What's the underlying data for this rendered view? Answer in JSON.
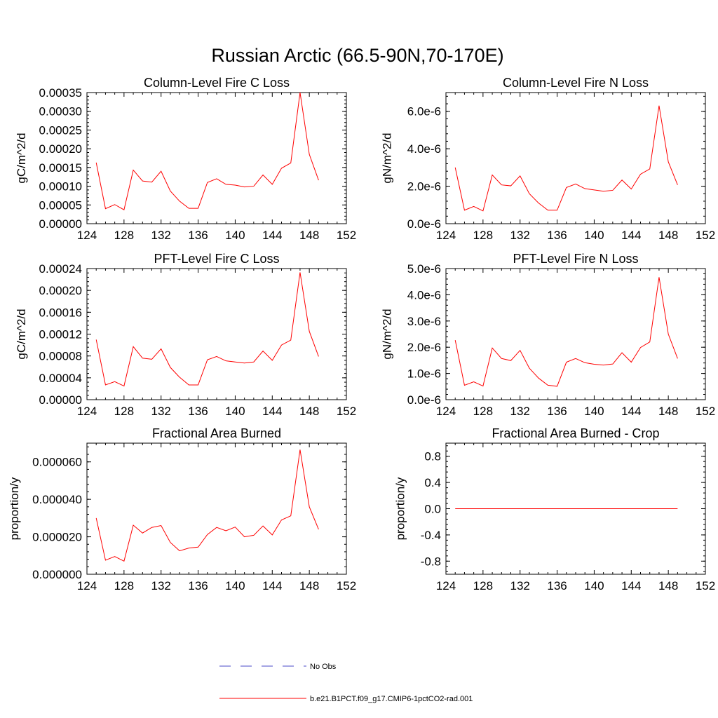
{
  "page_title": "Russian Arctic (66.5-90N,70-170E)",
  "legend": {
    "items": [
      {
        "label": "No Obs",
        "color": "#4a4ac8",
        "style": "dashed"
      },
      {
        "label": "b.e21.B1PCT.f09_g17.CMIP6-1pctCO2-rad.001",
        "color": "#ff0000",
        "style": "solid"
      }
    ]
  },
  "chart_data": [
    {
      "type": "line",
      "title": "Column-Level Fire C Loss",
      "ylabel": "gC/m^2/d",
      "xlim": [
        124,
        152
      ],
      "ylim": [
        0,
        0.00035
      ],
      "x_ticks": [
        "124",
        "128",
        "132",
        "136",
        "140",
        "144",
        "148",
        "152"
      ],
      "y_ticks": [
        {
          "v": 0.0,
          "l": "0.00000"
        },
        {
          "v": 5e-05,
          "l": "0.00005"
        },
        {
          "v": 0.0001,
          "l": "0.00010"
        },
        {
          "v": 0.00015,
          "l": "0.00015"
        },
        {
          "v": 0.0002,
          "l": "0.00020"
        },
        {
          "v": 0.00025,
          "l": "0.00025"
        },
        {
          "v": 0.0003,
          "l": "0.00030"
        },
        {
          "v": 0.00035,
          "l": "0.00035"
        }
      ],
      "series": [
        {
          "color": "#ff0000",
          "x": [
            125,
            126,
            127,
            128,
            129,
            130,
            131,
            132,
            133,
            134,
            135,
            136,
            137,
            138,
            139,
            140,
            141,
            142,
            143,
            144,
            145,
            146,
            147,
            148,
            149
          ],
          "y": [
            0.000163,
            4e-05,
            5.1e-05,
            3.7e-05,
            0.000143,
            0.000114,
            0.000111,
            0.00014,
            8.7e-05,
            6e-05,
            4.1e-05,
            4.1e-05,
            0.00011,
            0.00012,
            0.000105,
            0.000103,
            9.8e-05,
            0.0001,
            0.00013,
            0.000105,
            0.000148,
            0.000162,
            0.00035,
            0.000185,
            0.000116
          ]
        }
      ]
    },
    {
      "type": "line",
      "title": "Column-Level Fire N Loss",
      "ylabel": "gN/m^2/d",
      "xlim": [
        124,
        152
      ],
      "ylim": [
        0,
        7e-06
      ],
      "x_ticks": [
        "124",
        "128",
        "132",
        "136",
        "140",
        "144",
        "148",
        "152"
      ],
      "y_ticks": [
        {
          "v": 0,
          "l": "0.0e-6"
        },
        {
          "v": 2e-06,
          "l": "2.0e-6"
        },
        {
          "v": 4e-06,
          "l": "4.0e-6"
        },
        {
          "v": 6e-06,
          "l": "6.0e-6"
        }
      ],
      "series": [
        {
          "color": "#ff0000",
          "x": [
            125,
            126,
            127,
            128,
            129,
            130,
            131,
            132,
            133,
            134,
            135,
            136,
            137,
            138,
            139,
            140,
            141,
            142,
            143,
            144,
            145,
            146,
            147,
            148,
            149
          ],
          "y": [
            3e-06,
            7.2e-07,
            9.2e-07,
            6.8e-07,
            2.6e-06,
            2.07e-06,
            2.02e-06,
            2.55e-06,
            1.6e-06,
            1.1e-06,
            7.2e-07,
            7.2e-07,
            1.93e-06,
            2.12e-06,
            1.87e-06,
            1.8e-06,
            1.73e-06,
            1.78e-06,
            2.33e-06,
            1.85e-06,
            2.64e-06,
            2.92e-06,
            6.3e-06,
            3.3e-06,
            2.07e-06
          ]
        }
      ]
    },
    {
      "type": "line",
      "title": "PFT-Level Fire C Loss",
      "ylabel": "gC/m^2/d",
      "xlim": [
        124,
        152
      ],
      "ylim": [
        0,
        0.00024
      ],
      "x_ticks": [
        "124",
        "128",
        "132",
        "136",
        "140",
        "144",
        "148",
        "152"
      ],
      "y_ticks": [
        {
          "v": 0.0,
          "l": "0.00000"
        },
        {
          "v": 4e-05,
          "l": "0.00004"
        },
        {
          "v": 8e-05,
          "l": "0.00008"
        },
        {
          "v": 0.00012,
          "l": "0.00012"
        },
        {
          "v": 0.00016,
          "l": "0.00016"
        },
        {
          "v": 0.0002,
          "l": "0.00020"
        },
        {
          "v": 0.00024,
          "l": "0.00024"
        }
      ],
      "series": [
        {
          "color": "#ff0000",
          "x": [
            125,
            126,
            127,
            128,
            129,
            130,
            131,
            132,
            133,
            134,
            135,
            136,
            137,
            138,
            139,
            140,
            141,
            142,
            143,
            144,
            145,
            146,
            147,
            148,
            149
          ],
          "y": [
            0.00011,
            2.7e-05,
            3.3e-05,
            2.5e-05,
            9.7e-05,
            7.6e-05,
            7.4e-05,
            9.3e-05,
            5.9e-05,
            4.1e-05,
            2.7e-05,
            2.7e-05,
            7.3e-05,
            7.9e-05,
            7.1e-05,
            6.9e-05,
            6.7e-05,
            6.9e-05,
            8.9e-05,
            7.2e-05,
            0.0001,
            0.000109,
            0.000233,
            0.000125,
            7.9e-05
          ]
        }
      ]
    },
    {
      "type": "line",
      "title": "PFT-Level Fire N Loss",
      "ylabel": "gN/m^2/d",
      "xlim": [
        124,
        152
      ],
      "ylim": [
        0,
        5e-06
      ],
      "x_ticks": [
        "124",
        "128",
        "132",
        "136",
        "140",
        "144",
        "148",
        "152"
      ],
      "y_ticks": [
        {
          "v": 0,
          "l": "0.0e-6"
        },
        {
          "v": 1e-06,
          "l": "1.0e-6"
        },
        {
          "v": 2e-06,
          "l": "2.0e-6"
        },
        {
          "v": 3e-06,
          "l": "3.0e-6"
        },
        {
          "v": 4e-06,
          "l": "4.0e-6"
        },
        {
          "v": 5e-06,
          "l": "5.0e-6"
        }
      ],
      "series": [
        {
          "color": "#ff0000",
          "x": [
            125,
            126,
            127,
            128,
            129,
            130,
            131,
            132,
            133,
            134,
            135,
            136,
            137,
            138,
            139,
            140,
            141,
            142,
            143,
            144,
            145,
            146,
            147,
            148,
            149
          ],
          "y": [
            2.27e-06,
            5.5e-07,
            6.8e-07,
            5.2e-07,
            1.97e-06,
            1.57e-06,
            1.49e-06,
            1.88e-06,
            1.2e-06,
            8.2e-07,
            5.5e-07,
            5.1e-07,
            1.43e-06,
            1.57e-06,
            1.41e-06,
            1.35e-06,
            1.32e-06,
            1.36e-06,
            1.79e-06,
            1.43e-06,
            1.99e-06,
            2.2e-06,
            4.67e-06,
            2.5e-06,
            1.57e-06
          ]
        }
      ]
    },
    {
      "type": "line",
      "title": "Fractional Area Burned",
      "ylabel": "proportion/y",
      "xlim": [
        124,
        152
      ],
      "ylim": [
        0,
        7e-05
      ],
      "x_ticks": [
        "124",
        "128",
        "132",
        "136",
        "140",
        "144",
        "148",
        "152"
      ],
      "y_ticks": [
        {
          "v": 0.0,
          "l": "0.000000"
        },
        {
          "v": 2e-05,
          "l": "0.000020"
        },
        {
          "v": 4e-05,
          "l": "0.000040"
        },
        {
          "v": 6e-05,
          "l": "0.000060"
        }
      ],
      "series": [
        {
          "color": "#ff0000",
          "x": [
            125,
            126,
            127,
            128,
            129,
            130,
            131,
            132,
            133,
            134,
            135,
            136,
            137,
            138,
            139,
            140,
            141,
            142,
            143,
            144,
            145,
            146,
            147,
            148,
            149
          ],
          "y": [
            3e-05,
            7.5e-06,
            9.5e-06,
            7e-06,
            2.62e-05,
            2.2e-05,
            2.5e-05,
            2.6e-05,
            1.7e-05,
            1.25e-05,
            1.4e-05,
            1.45e-05,
            2.12e-05,
            2.5e-05,
            2.32e-05,
            2.52e-05,
            2e-05,
            2.08e-05,
            2.58e-05,
            2.1e-05,
            2.9e-05,
            3.12e-05,
            6.65e-05,
            3.6e-05,
            2.4e-05
          ]
        }
      ]
    },
    {
      "type": "line",
      "title": "Fractional Area Burned - Crop",
      "ylabel": "proportion/y",
      "xlim": [
        124,
        152
      ],
      "ylim": [
        -1,
        1
      ],
      "x_ticks": [
        "124",
        "128",
        "132",
        "136",
        "140",
        "144",
        "148",
        "152"
      ],
      "y_ticks": [
        {
          "v": -0.8,
          "l": "-0.8"
        },
        {
          "v": -0.4,
          "l": "-0.4"
        },
        {
          "v": 0.0,
          "l": "0.0"
        },
        {
          "v": 0.4,
          "l": "0.4"
        },
        {
          "v": 0.8,
          "l": "0.8"
        }
      ],
      "series": [
        {
          "color": "#ff0000",
          "x": [
            125,
            126,
            127,
            128,
            129,
            130,
            131,
            132,
            133,
            134,
            135,
            136,
            137,
            138,
            139,
            140,
            141,
            142,
            143,
            144,
            145,
            146,
            147,
            148,
            149
          ],
          "y": [
            0,
            0,
            0,
            0,
            0,
            0,
            0,
            0,
            0,
            0,
            0,
            0,
            0,
            0,
            0,
            0,
            0,
            0,
            0,
            0,
            0,
            0,
            0,
            0,
            0
          ]
        }
      ]
    }
  ]
}
